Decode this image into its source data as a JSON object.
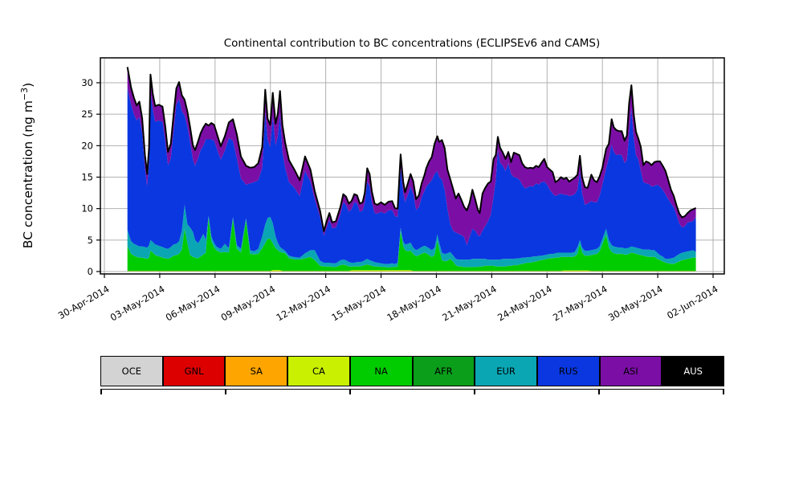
{
  "title": "Continental contribution to BC concentrations (ECLIPSEv6 and CAMS)",
  "y_axis": {
    "label_pre": "BC concentration (ng m",
    "label_sup": "−3",
    "label_post": ")",
    "tick_values": [
      0,
      5,
      10,
      15,
      20,
      25,
      30
    ]
  },
  "x_axis": {
    "tick_days": [
      0,
      3,
      6,
      9,
      12,
      15,
      18,
      21,
      24,
      27,
      30,
      33
    ],
    "tick_labels": [
      "30-Apr-2014",
      "03-May-2014",
      "06-May-2014",
      "09-May-2014",
      "12-May-2014",
      "15-May-2014",
      "18-May-2014",
      "21-May-2014",
      "24-May-2014",
      "27-May-2014",
      "30-May-2014",
      "02-Jun-2014"
    ]
  },
  "legend": [
    {
      "label": "OCE",
      "color": "#d3d3d3",
      "text_color": "#000000"
    },
    {
      "label": "GNL",
      "color": "#dc0000",
      "text_color": "#000000"
    },
    {
      "label": "SA",
      "color": "#ffa500",
      "text_color": "#000000"
    },
    {
      "label": "CA",
      "color": "#c8f000",
      "text_color": "#000000"
    },
    {
      "label": "NA",
      "color": "#00cc00",
      "text_color": "#000000"
    },
    {
      "label": "AFR",
      "color": "#0a9e1a",
      "text_color": "#000000"
    },
    {
      "label": "EUR",
      "color": "#0aa6b4",
      "text_color": "#000000"
    },
    {
      "label": "RUS",
      "color": "#0a37e0",
      "text_color": "#000000"
    },
    {
      "label": "ASI",
      "color": "#7b0fa5",
      "text_color": "#000000"
    },
    {
      "label": "AUS",
      "color": "#000000",
      "text_color": "#ffffff"
    }
  ],
  "chart_data": {
    "type": "area",
    "stacked": true,
    "title": "Continental contribution to BC concentrations (ECLIPSEv6 and CAMS)",
    "ylabel": "BC concentration (ng m^-3)",
    "xlabel": "",
    "grid": true,
    "legend_position": "below",
    "ylim": [
      0,
      34
    ],
    "xlim_days": [
      -0.2,
      33.6
    ],
    "x_unit": "days since 30-Apr-2014 00:00",
    "series_order": [
      "OCE",
      "GNL",
      "SA",
      "CA",
      "NA",
      "AFR",
      "EUR",
      "RUS",
      "ASI",
      "AUS"
    ],
    "representation": "points rows = [day, NA_top, EUR_top, RUS_top, TOTAL] cumulative stack tops read from plot; thin layers are near-zero constant bands",
    "thin_layers": {
      "OCE": 0.02,
      "GNL": 0.02,
      "SA": 0.02,
      "CA_base": 0.02,
      "AFR": 0.02,
      "AUS": 0.08
    },
    "ca_extra_windows": [
      [
        9.0,
        9.6,
        0.15
      ],
      [
        13.4,
        16.6,
        0.12
      ],
      [
        24.9,
        26.2,
        0.1
      ]
    ],
    "points": [
      [
        1.25,
        4.0,
        6.6,
        29.2,
        32.5
      ],
      [
        1.45,
        2.8,
        4.8,
        26.5,
        29.2
      ],
      [
        1.6,
        2.5,
        4.4,
        25.0,
        27.6
      ],
      [
        1.75,
        2.3,
        4.2,
        24.0,
        26.4
      ],
      [
        1.9,
        2.2,
        4.0,
        24.5,
        27.0
      ],
      [
        2.05,
        2.2,
        4.0,
        22.0,
        24.3
      ],
      [
        2.2,
        2.1,
        3.9,
        16.5,
        18.5
      ],
      [
        2.32,
        2.0,
        3.8,
        13.5,
        15.5
      ],
      [
        2.42,
        2.2,
        4.2,
        17.5,
        19.7
      ],
      [
        2.5,
        3.3,
        5.0,
        28.5,
        31.3
      ],
      [
        2.62,
        3.0,
        4.7,
        25.8,
        28.3
      ],
      [
        2.75,
        2.6,
        4.3,
        23.8,
        26.3
      ],
      [
        2.95,
        2.4,
        4.1,
        24.0,
        26.5
      ],
      [
        3.15,
        2.2,
        3.9,
        23.8,
        26.2
      ],
      [
        3.3,
        2.1,
        3.7,
        20.8,
        23.1
      ],
      [
        3.45,
        2.0,
        3.6,
        16.9,
        19.0
      ],
      [
        3.6,
        2.2,
        3.9,
        18.0,
        20.3
      ],
      [
        3.75,
        2.5,
        4.3,
        22.2,
        24.8
      ],
      [
        3.9,
        2.6,
        4.4,
        26.5,
        29.1
      ],
      [
        4.05,
        2.8,
        4.8,
        27.4,
        30.1
      ],
      [
        4.2,
        3.5,
        6.5,
        25.5,
        28.0
      ],
      [
        4.35,
        6.8,
        10.6,
        24.8,
        27.3
      ],
      [
        4.5,
        4.5,
        7.5,
        23.0,
        25.4
      ],
      [
        4.65,
        2.6,
        7.0,
        20.5,
        22.9
      ],
      [
        4.8,
        2.3,
        6.3,
        17.8,
        20.0
      ],
      [
        4.92,
        2.2,
        5.0,
        16.8,
        19.3
      ],
      [
        5.08,
        2.1,
        4.5,
        18.0,
        20.7
      ],
      [
        5.22,
        2.4,
        5.2,
        19.3,
        22.0
      ],
      [
        5.37,
        2.7,
        6.0,
        20.0,
        22.9
      ],
      [
        5.5,
        3.0,
        5.0,
        21.0,
        23.5
      ],
      [
        5.65,
        8.5,
        8.9,
        21.0,
        23.2
      ],
      [
        5.8,
        4.8,
        5.6,
        21.0,
        23.6
      ],
      [
        5.95,
        3.8,
        4.5,
        20.8,
        23.3
      ],
      [
        6.1,
        3.3,
        3.9,
        19.5,
        21.9
      ],
      [
        6.31,
        3.0,
        3.6,
        17.8,
        19.9
      ],
      [
        6.53,
        3.1,
        4.4,
        19.2,
        21.5
      ],
      [
        6.75,
        3.0,
        3.7,
        21.2,
        23.7
      ],
      [
        6.97,
        8.3,
        8.7,
        20.8,
        24.2
      ],
      [
        7.18,
        3.6,
        4.2,
        18.0,
        21.8
      ],
      [
        7.4,
        3.0,
        3.6,
        14.8,
        18.3
      ],
      [
        7.68,
        8.1,
        8.5,
        13.8,
        16.8
      ],
      [
        7.9,
        2.8,
        3.4,
        14.0,
        16.5
      ],
      [
        8.12,
        2.7,
        3.2,
        14.2,
        16.6
      ],
      [
        8.34,
        2.8,
        3.6,
        14.5,
        17.2
      ],
      [
        8.56,
        3.7,
        5.6,
        16.5,
        19.8
      ],
      [
        8.72,
        4.5,
        7.5,
        25.3,
        28.9
      ],
      [
        8.85,
        5.2,
        8.5,
        21.0,
        24.3
      ],
      [
        8.99,
        5.2,
        8.7,
        19.8,
        23.3
      ],
      [
        9.13,
        4.5,
        7.7,
        24.6,
        28.4
      ],
      [
        9.28,
        3.7,
        5.6,
        20.0,
        23.5
      ],
      [
        9.4,
        3.4,
        4.6,
        21.5,
        25.0
      ],
      [
        9.52,
        3.1,
        3.9,
        25.0,
        28.7
      ],
      [
        9.65,
        3.0,
        3.6,
        19.0,
        23.3
      ],
      [
        9.8,
        2.9,
        3.3,
        16.5,
        20.5
      ],
      [
        10.01,
        2.1,
        2.5,
        14.2,
        17.7
      ],
      [
        10.3,
        1.9,
        2.3,
        13.3,
        16.2
      ],
      [
        10.59,
        1.9,
        2.2,
        12.0,
        14.5
      ],
      [
        10.88,
        2.1,
        2.9,
        16.0,
        18.3
      ],
      [
        11.17,
        2.3,
        3.4,
        14.3,
        16.2
      ],
      [
        11.4,
        1.8,
        3.4,
        11.5,
        12.8
      ],
      [
        11.7,
        0.9,
        1.7,
        8.6,
        9.6
      ],
      [
        11.9,
        0.8,
        1.4,
        5.7,
        6.4
      ],
      [
        12.05,
        0.8,
        1.4,
        7.0,
        8.0
      ],
      [
        12.2,
        0.8,
        1.4,
        8.2,
        9.3
      ],
      [
        12.35,
        0.7,
        1.3,
        6.9,
        7.8
      ],
      [
        12.55,
        0.7,
        1.3,
        7.0,
        8.0
      ],
      [
        12.8,
        1.0,
        1.8,
        9.1,
        10.3
      ],
      [
        12.95,
        1.1,
        1.9,
        11.0,
        12.3
      ],
      [
        13.1,
        1.0,
        1.8,
        10.6,
        11.9
      ],
      [
        13.25,
        0.8,
        1.5,
        9.5,
        10.8
      ],
      [
        13.4,
        0.8,
        1.4,
        9.9,
        11.2
      ],
      [
        13.55,
        0.8,
        1.4,
        11.0,
        12.3
      ],
      [
        13.7,
        0.8,
        1.5,
        10.8,
        12.1
      ],
      [
        13.85,
        0.8,
        1.5,
        9.5,
        10.8
      ],
      [
        14.0,
        0.9,
        1.6,
        9.7,
        11.0
      ],
      [
        14.12,
        1.0,
        1.8,
        11.0,
        12.5
      ],
      [
        14.25,
        1.1,
        2.0,
        14.3,
        16.4
      ],
      [
        14.38,
        1.0,
        1.8,
        13.5,
        15.5
      ],
      [
        14.5,
        0.9,
        1.7,
        11.0,
        12.7
      ],
      [
        14.65,
        0.8,
        1.5,
        9.3,
        10.8
      ],
      [
        14.8,
        0.8,
        1.4,
        9.2,
        10.6
      ],
      [
        15.0,
        0.7,
        1.3,
        9.5,
        11.0
      ],
      [
        15.2,
        0.7,
        1.2,
        9.2,
        10.6
      ],
      [
        15.4,
        0.6,
        1.2,
        9.7,
        11.1
      ],
      [
        15.6,
        0.7,
        1.3,
        9.8,
        11.2
      ],
      [
        15.75,
        0.7,
        1.2,
        8.8,
        10.1
      ],
      [
        15.9,
        0.8,
        1.4,
        8.7,
        10.0
      ],
      [
        16.06,
        6.4,
        7.0,
        16.5,
        18.6
      ],
      [
        16.2,
        4.0,
        4.8,
        12.6,
        14.3
      ],
      [
        16.3,
        3.4,
        4.3,
        11.0,
        12.6
      ],
      [
        16.45,
        3.2,
        4.4,
        12.2,
        14.0
      ],
      [
        16.6,
        3.3,
        4.6,
        13.5,
        15.5
      ],
      [
        16.75,
        2.8,
        3.8,
        12.3,
        14.3
      ],
      [
        16.9,
        2.4,
        3.4,
        9.8,
        11.5
      ],
      [
        17.05,
        2.6,
        3.6,
        10.2,
        12.1
      ],
      [
        17.2,
        2.8,
        3.9,
        11.8,
        14.0
      ],
      [
        17.35,
        3.0,
        4.1,
        12.8,
        15.3
      ],
      [
        17.45,
        2.9,
        4.0,
        13.5,
        16.4
      ],
      [
        17.6,
        2.6,
        3.7,
        14.0,
        17.5
      ],
      [
        17.75,
        2.3,
        3.4,
        14.5,
        18.2
      ],
      [
        17.9,
        2.6,
        3.8,
        15.5,
        20.3
      ],
      [
        18.05,
        4.9,
        5.9,
        16.0,
        21.5
      ],
      [
        18.15,
        3.5,
        4.6,
        15.0,
        20.6
      ],
      [
        18.3,
        1.8,
        3.0,
        14.6,
        20.9
      ],
      [
        18.45,
        1.6,
        2.8,
        13.0,
        19.6
      ],
      [
        18.6,
        1.7,
        2.9,
        10.0,
        16.2
      ],
      [
        18.75,
        2.0,
        3.1,
        7.5,
        14.7
      ],
      [
        18.9,
        1.6,
        2.6,
        6.5,
        13.2
      ],
      [
        19.05,
        1.0,
        2.0,
        6.2,
        11.6
      ],
      [
        19.2,
        0.8,
        1.9,
        6.0,
        12.4
      ],
      [
        19.35,
        0.8,
        1.9,
        5.8,
        11.4
      ],
      [
        19.5,
        0.7,
        1.9,
        5.5,
        10.3
      ],
      [
        19.65,
        0.7,
        1.9,
        4.2,
        9.7
      ],
      [
        19.8,
        0.7,
        1.9,
        5.5,
        10.9
      ],
      [
        19.95,
        0.7,
        2.0,
        6.8,
        13.0
      ],
      [
        20.1,
        0.7,
        2.0,
        6.5,
        11.5
      ],
      [
        20.25,
        0.7,
        2.0,
        5.8,
        9.8
      ],
      [
        20.35,
        0.8,
        2.0,
        5.6,
        9.3
      ],
      [
        20.5,
        0.8,
        2.0,
        6.5,
        12.4
      ],
      [
        20.65,
        0.9,
        2.0,
        7.2,
        13.3
      ],
      [
        20.8,
        0.9,
        1.9,
        8.0,
        14.0
      ],
      [
        20.95,
        0.9,
        1.9,
        9.0,
        14.3
      ],
      [
        21.1,
        0.9,
        1.9,
        12.0,
        17.9
      ],
      [
        21.22,
        0.8,
        1.9,
        14.5,
        18.5
      ],
      [
        21.33,
        0.8,
        1.9,
        19.3,
        21.4
      ],
      [
        21.45,
        0.8,
        1.9,
        17.3,
        19.7
      ],
      [
        21.6,
        0.8,
        2.0,
        16.8,
        18.9
      ],
      [
        21.75,
        0.8,
        2.0,
        16.0,
        17.9
      ],
      [
        21.9,
        0.9,
        2.0,
        17.2,
        19.0
      ],
      [
        22.05,
        0.9,
        2.0,
        15.5,
        17.4
      ],
      [
        22.2,
        1.0,
        2.0,
        15.0,
        18.9
      ],
      [
        22.35,
        1.0,
        2.1,
        14.9,
        18.7
      ],
      [
        22.5,
        1.1,
        2.1,
        14.6,
        18.5
      ],
      [
        22.65,
        1.2,
        2.2,
        13.8,
        17.2
      ],
      [
        22.8,
        1.3,
        2.2,
        13.2,
        16.6
      ],
      [
        22.95,
        1.4,
        2.3,
        13.4,
        16.4
      ],
      [
        23.1,
        1.4,
        2.3,
        13.6,
        16.5
      ],
      [
        23.25,
        1.5,
        2.4,
        13.5,
        16.4
      ],
      [
        23.4,
        1.6,
        2.4,
        14.0,
        16.8
      ],
      [
        23.55,
        1.7,
        2.5,
        13.8,
        16.6
      ],
      [
        23.7,
        1.8,
        2.5,
        14.2,
        17.3
      ],
      [
        23.85,
        1.9,
        2.6,
        14.3,
        17.9
      ],
      [
        24.0,
        2.0,
        2.7,
        13.8,
        16.6
      ],
      [
        24.15,
        2.1,
        2.8,
        13.0,
        16.2
      ],
      [
        24.3,
        2.1,
        2.8,
        12.4,
        15.8
      ],
      [
        24.45,
        2.2,
        2.9,
        12.0,
        14.2
      ],
      [
        24.6,
        2.2,
        3.0,
        12.2,
        14.5
      ],
      [
        24.75,
        2.3,
        3.0,
        12.4,
        15.0
      ],
      [
        24.9,
        2.3,
        3.0,
        12.2,
        14.7
      ],
      [
        25.05,
        2.3,
        3.0,
        12.2,
        14.9
      ],
      [
        25.2,
        2.3,
        3.0,
        12.0,
        14.3
      ],
      [
        25.35,
        2.3,
        3.0,
        12.1,
        14.6
      ],
      [
        25.5,
        2.4,
        3.1,
        12.3,
        14.9
      ],
      [
        25.65,
        2.8,
        3.9,
        13.0,
        15.4
      ],
      [
        25.78,
        4.3,
        5.0,
        16.0,
        18.4
      ],
      [
        25.9,
        3.0,
        3.8,
        12.5,
        15.0
      ],
      [
        26.05,
        2.5,
        3.3,
        10.6,
        13.4
      ],
      [
        26.2,
        2.5,
        3.3,
        10.8,
        13.3
      ],
      [
        26.4,
        2.6,
        3.4,
        11.2,
        15.4
      ],
      [
        26.55,
        2.7,
        3.5,
        11.0,
        14.5
      ],
      [
        26.7,
        2.8,
        3.6,
        11.0,
        14.2
      ],
      [
        26.85,
        3.2,
        4.0,
        12.0,
        15.1
      ],
      [
        27.0,
        4.3,
        5.2,
        13.8,
        16.5
      ],
      [
        27.2,
        5.8,
        6.8,
        16.4,
        19.5
      ],
      [
        27.35,
        3.8,
        5.0,
        18.0,
        20.3
      ],
      [
        27.5,
        3.1,
        4.2,
        20.2,
        24.2
      ],
      [
        27.62,
        2.9,
        4.0,
        19.0,
        22.9
      ],
      [
        27.75,
        2.8,
        3.9,
        18.5,
        22.5
      ],
      [
        27.9,
        2.8,
        3.8,
        18.6,
        22.3
      ],
      [
        28.05,
        2.8,
        3.8,
        18.5,
        22.3
      ],
      [
        28.2,
        2.7,
        3.7,
        17.2,
        20.8
      ],
      [
        28.33,
        2.7,
        3.7,
        17.8,
        21.6
      ],
      [
        28.45,
        2.8,
        3.8,
        22.0,
        26.8
      ],
      [
        28.57,
        3.0,
        4.0,
        26.0,
        29.6
      ],
      [
        28.7,
        2.9,
        3.9,
        21.2,
        25.0
      ],
      [
        28.82,
        2.8,
        3.8,
        18.5,
        22.2
      ],
      [
        28.95,
        2.7,
        3.7,
        17.8,
        21.1
      ],
      [
        29.08,
        2.6,
        3.6,
        16.0,
        19.8
      ],
      [
        29.22,
        2.5,
        3.5,
        14.2,
        16.9
      ],
      [
        29.37,
        2.4,
        3.5,
        14.0,
        17.5
      ],
      [
        29.52,
        2.3,
        3.5,
        13.9,
        17.3
      ],
      [
        29.67,
        2.3,
        3.4,
        13.5,
        16.9
      ],
      [
        29.82,
        2.3,
        3.4,
        13.6,
        17.4
      ],
      [
        29.97,
        2.0,
        3.0,
        13.8,
        17.5
      ],
      [
        30.12,
        1.8,
        2.6,
        13.5,
        17.5
      ],
      [
        30.27,
        1.6,
        2.4,
        13.0,
        16.8
      ],
      [
        30.42,
        1.4,
        2.0,
        12.3,
        16.0
      ],
      [
        30.57,
        1.3,
        2.0,
        11.5,
        14.5
      ],
      [
        30.72,
        1.2,
        2.1,
        10.8,
        13.0
      ],
      [
        30.87,
        1.2,
        2.2,
        10.2,
        12.0
      ],
      [
        31.02,
        1.4,
        2.5,
        9.0,
        10.5
      ],
      [
        31.17,
        1.6,
        2.8,
        7.6,
        9.2
      ],
      [
        31.32,
        1.8,
        3.0,
        7.0,
        8.6
      ],
      [
        31.47,
        1.9,
        3.1,
        7.2,
        8.8
      ],
      [
        31.62,
        2.0,
        3.2,
        7.8,
        9.3
      ],
      [
        31.77,
        2.1,
        3.3,
        7.9,
        9.7
      ],
      [
        31.92,
        2.2,
        3.4,
        8.0,
        9.9
      ],
      [
        32.07,
        2.2,
        3.1,
        8.7,
        10.1
      ]
    ]
  },
  "colors": {
    "grid": "#b0b0b0",
    "spine": "#000000",
    "total_line": "#000000",
    "background": "#ffffff"
  }
}
